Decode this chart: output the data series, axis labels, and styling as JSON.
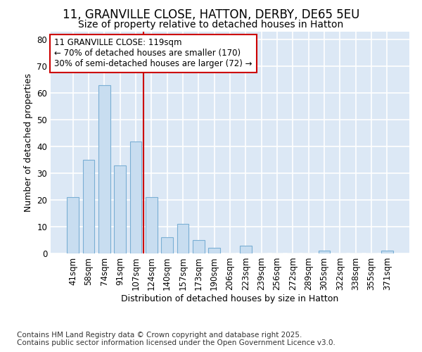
{
  "title1": "11, GRANVILLE CLOSE, HATTON, DERBY, DE65 5EU",
  "title2": "Size of property relative to detached houses in Hatton",
  "xlabel": "Distribution of detached houses by size in Hatton",
  "ylabel": "Number of detached properties",
  "categories": [
    "41sqm",
    "58sqm",
    "74sqm",
    "91sqm",
    "107sqm",
    "124sqm",
    "140sqm",
    "157sqm",
    "173sqm",
    "190sqm",
    "206sqm",
    "223sqm",
    "239sqm",
    "256sqm",
    "272sqm",
    "289sqm",
    "305sqm",
    "322sqm",
    "338sqm",
    "355sqm",
    "371sqm"
  ],
  "values": [
    21,
    35,
    63,
    33,
    42,
    21,
    6,
    11,
    5,
    2,
    0,
    3,
    0,
    0,
    0,
    0,
    1,
    0,
    0,
    0,
    1
  ],
  "bar_color": "#c8ddf0",
  "bar_edge_color": "#7aafd4",
  "vline_x_index": 5.0,
  "vline_color": "#cc0000",
  "annotation_text": "11 GRANVILLE CLOSE: 119sqm\n← 70% of detached houses are smaller (170)\n30% of semi-detached houses are larger (72) →",
  "annotation_box_color": "#ffffff",
  "annotation_box_edge": "#cc0000",
  "ylim": [
    0,
    83
  ],
  "yticks": [
    0,
    10,
    20,
    30,
    40,
    50,
    60,
    70,
    80
  ],
  "background_color": "#dce8f5",
  "grid_color": "#ffffff",
  "footnote": "Contains HM Land Registry data © Crown copyright and database right 2025.\nContains public sector information licensed under the Open Government Licence v3.0.",
  "title1_fontsize": 12,
  "title2_fontsize": 10,
  "xlabel_fontsize": 9,
  "ylabel_fontsize": 9,
  "tick_fontsize": 8.5,
  "annotation_fontsize": 8.5,
  "footnote_fontsize": 7.5
}
